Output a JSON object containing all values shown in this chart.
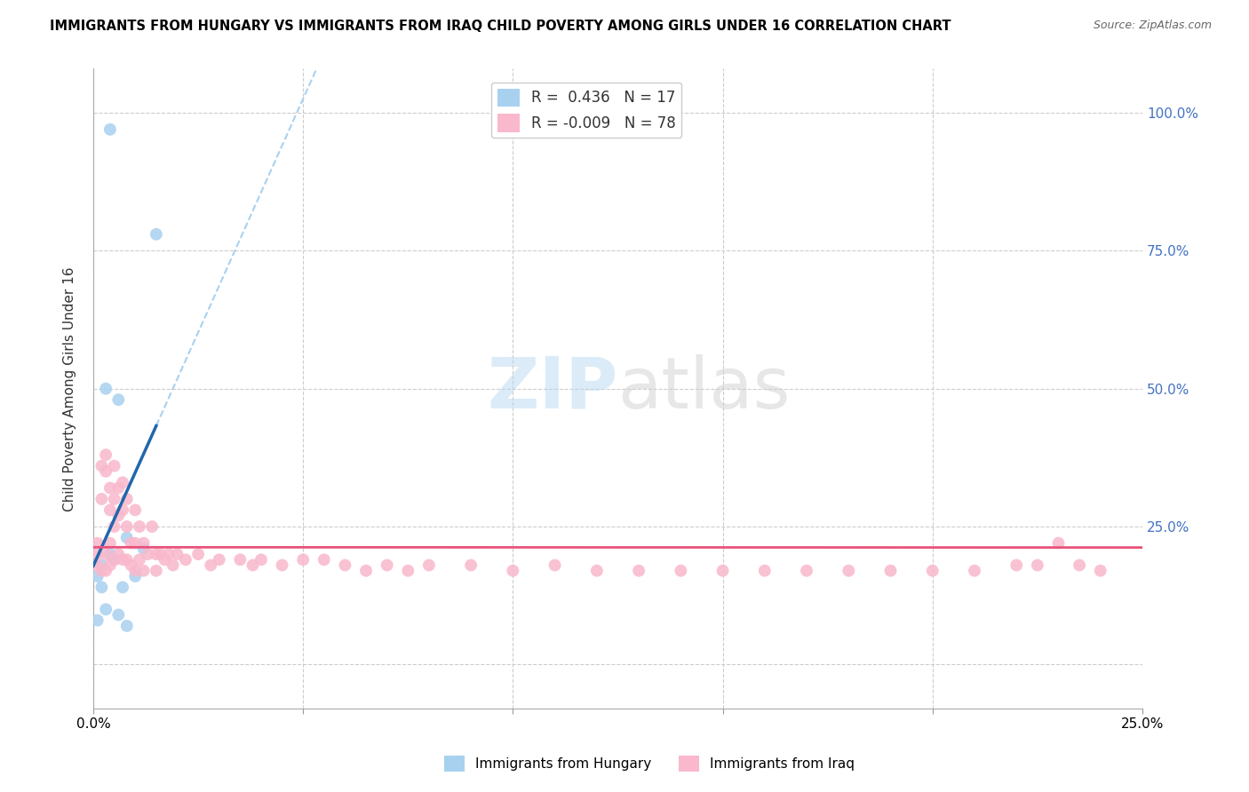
{
  "title": "IMMIGRANTS FROM HUNGARY VS IMMIGRANTS FROM IRAQ CHILD POVERTY AMONG GIRLS UNDER 16 CORRELATION CHART",
  "source": "Source: ZipAtlas.com",
  "ylabel": "Child Poverty Among Girls Under 16",
  "yticks": [
    0.0,
    0.25,
    0.5,
    0.75,
    1.0
  ],
  "xmin": 0.0,
  "xmax": 0.25,
  "ymin": -0.08,
  "ymax": 1.08,
  "legend_hungary_r": "0.436",
  "legend_hungary_n": "17",
  "legend_iraq_r": "-0.009",
  "legend_iraq_n": "78",
  "color_hungary": "#a8d1f0",
  "color_iraq": "#f9b8cc",
  "color_hungary_line": "#2166ac",
  "color_iraq_line": "#e8537a",
  "color_dashed": "#a8d1f0",
  "watermark_zip": "ZIP",
  "watermark_atlas": "atlas",
  "hungary_x": [
    0.004,
    0.015,
    0.003,
    0.006,
    0.008,
    0.012,
    0.002,
    0.004,
    0.001,
    0.002,
    0.005,
    0.01,
    0.007,
    0.003,
    0.006,
    0.008,
    0.001
  ],
  "hungary_y": [
    0.97,
    0.78,
    0.5,
    0.48,
    0.23,
    0.21,
    0.18,
    0.2,
    0.16,
    0.14,
    0.19,
    0.16,
    0.14,
    0.1,
    0.09,
    0.07,
    0.08
  ],
  "iraq_x": [
    0.001,
    0.001,
    0.001,
    0.002,
    0.002,
    0.002,
    0.003,
    0.003,
    0.003,
    0.003,
    0.004,
    0.004,
    0.004,
    0.004,
    0.005,
    0.005,
    0.005,
    0.005,
    0.006,
    0.006,
    0.006,
    0.007,
    0.007,
    0.007,
    0.008,
    0.008,
    0.008,
    0.009,
    0.009,
    0.01,
    0.01,
    0.01,
    0.011,
    0.011,
    0.012,
    0.012,
    0.013,
    0.014,
    0.015,
    0.015,
    0.016,
    0.017,
    0.018,
    0.019,
    0.02,
    0.022,
    0.025,
    0.028,
    0.03,
    0.035,
    0.038,
    0.04,
    0.045,
    0.05,
    0.055,
    0.06,
    0.065,
    0.07,
    0.075,
    0.08,
    0.09,
    0.1,
    0.11,
    0.12,
    0.13,
    0.14,
    0.15,
    0.16,
    0.17,
    0.18,
    0.19,
    0.2,
    0.21,
    0.22,
    0.225,
    0.23,
    0.235,
    0.24
  ],
  "iraq_y": [
    0.2,
    0.18,
    0.22,
    0.36,
    0.3,
    0.17,
    0.38,
    0.35,
    0.2,
    0.17,
    0.32,
    0.28,
    0.22,
    0.18,
    0.36,
    0.3,
    0.25,
    0.19,
    0.32,
    0.27,
    0.2,
    0.33,
    0.28,
    0.19,
    0.3,
    0.25,
    0.19,
    0.22,
    0.18,
    0.28,
    0.22,
    0.17,
    0.25,
    0.19,
    0.22,
    0.17,
    0.2,
    0.25,
    0.2,
    0.17,
    0.2,
    0.19,
    0.2,
    0.18,
    0.2,
    0.19,
    0.2,
    0.18,
    0.19,
    0.19,
    0.18,
    0.19,
    0.18,
    0.19,
    0.19,
    0.18,
    0.17,
    0.18,
    0.17,
    0.18,
    0.18,
    0.17,
    0.18,
    0.17,
    0.17,
    0.17,
    0.17,
    0.17,
    0.17,
    0.17,
    0.17,
    0.17,
    0.17,
    0.18,
    0.18,
    0.22,
    0.18,
    0.17
  ],
  "xtick_positions": [
    0.0,
    0.05,
    0.1,
    0.15,
    0.2,
    0.25
  ],
  "xtick_labels_show": [
    "0.0%",
    "",
    "",
    "",
    "",
    "25.0%"
  ],
  "ytick_labels_right": [
    "",
    "25.0%",
    "50.0%",
    "75.0%",
    "100.0%"
  ]
}
